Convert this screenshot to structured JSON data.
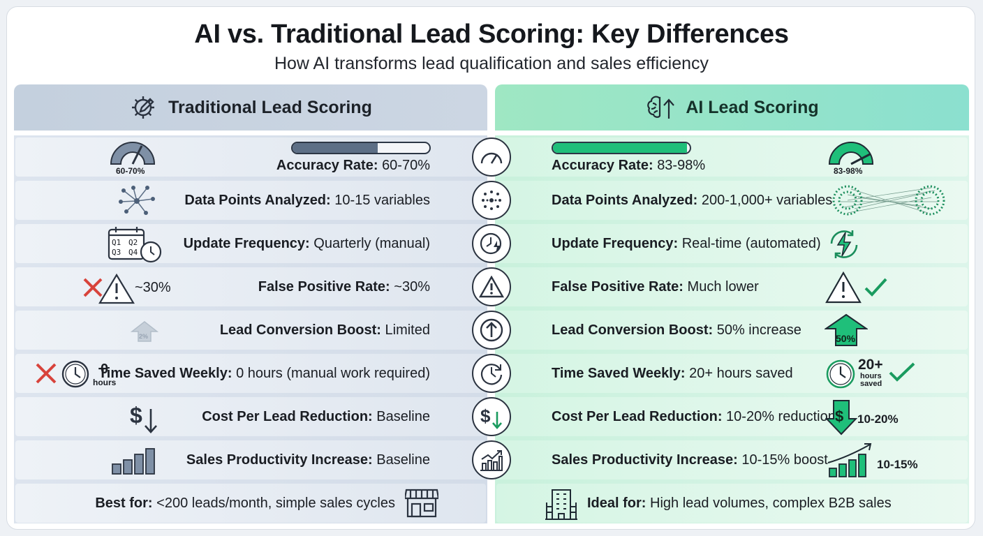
{
  "title": "AI vs. Traditional Lead Scoring: Key Differences",
  "subtitle": "How AI transforms lead qualification and sales efficiency",
  "colors": {
    "traditional": "#c4d0de",
    "ai": "#9fe7c3",
    "ai_accent": "#1fbf7a",
    "trad_accent": "#5d6f86",
    "red": "#d8433b",
    "green": "#1a9b5f"
  },
  "traditional": {
    "heading": "Traditional Lead Scoring",
    "icon": "gear-pencil-icon",
    "rows": [
      {
        "label": "Accuracy Rate:",
        "value": "60-70%",
        "icon": "gauge-icon",
        "badge": "60-70%"
      },
      {
        "label": "Data Points Analyzed:",
        "value": "10-15 variables",
        "icon": "network-icon"
      },
      {
        "label": "Update Frequency:",
        "value": "Quarterly (manual)",
        "icon": "calendar-clock-icon",
        "q": [
          "Q1",
          "Q2",
          "Q3",
          "Q4"
        ]
      },
      {
        "label": "False Positive Rate:",
        "value": "~30%",
        "icon": "warning-icon",
        "badge": "~30%"
      },
      {
        "label": "Lead Conversion Boost:",
        "value": "Limited",
        "icon": "arrow-up-icon",
        "badge": "2%"
      },
      {
        "label": "Time Saved Weekly:",
        "value": "0 hours (manual work required)",
        "icon": "clock-icon",
        "badge_num": "0",
        "badge_unit": "hours"
      },
      {
        "label": "Cost Per Lead Reduction:",
        "value": "Baseline",
        "icon": "dollar-down-icon"
      },
      {
        "label": "Sales Productivity Increase:",
        "value": "Baseline",
        "icon": "bar-chart-icon"
      }
    ],
    "best_label": "Best for:",
    "best_value": "<200 leads/month, simple sales cycles"
  },
  "ai": {
    "heading": "AI Lead Scoring",
    "icon": "brain-arrow-icon",
    "rows": [
      {
        "label": "Accuracy Rate:",
        "value": "83-98%",
        "icon": "gauge-icon",
        "badge": "83-98%"
      },
      {
        "label": "Data Points Analyzed:",
        "value": "200-1,000+ variables",
        "icon": "dense-network-icon"
      },
      {
        "label": "Update Frequency:",
        "value": "Real-time (automated)",
        "icon": "lightning-cycle-icon"
      },
      {
        "label": "False Positive Rate:",
        "value": "Much lower",
        "icon": "warning-check-icon"
      },
      {
        "label": "Lead Conversion Boost:",
        "value": "50% increase",
        "icon": "arrow-up-icon",
        "badge": "50%"
      },
      {
        "label": "Time Saved Weekly:",
        "value": "20+ hours saved",
        "icon": "clock-check-icon",
        "badge_num": "20+",
        "badge_unit1": "hours",
        "badge_unit2": "saved"
      },
      {
        "label": "Cost Per Lead Reduction:",
        "value": "10-20% reduction",
        "icon": "dollar-down-icon",
        "badge": "10-20%"
      },
      {
        "label": "Sales Productivity Increase:",
        "value": "10-15% boost",
        "icon": "growth-chart-icon",
        "badge": "10-15%"
      }
    ],
    "best_label": "Ideal for:",
    "best_value": "High lead volumes, complex B2B sales"
  },
  "accuracy": {
    "traditional_fill": 0.62,
    "ai_fill": 0.98
  }
}
